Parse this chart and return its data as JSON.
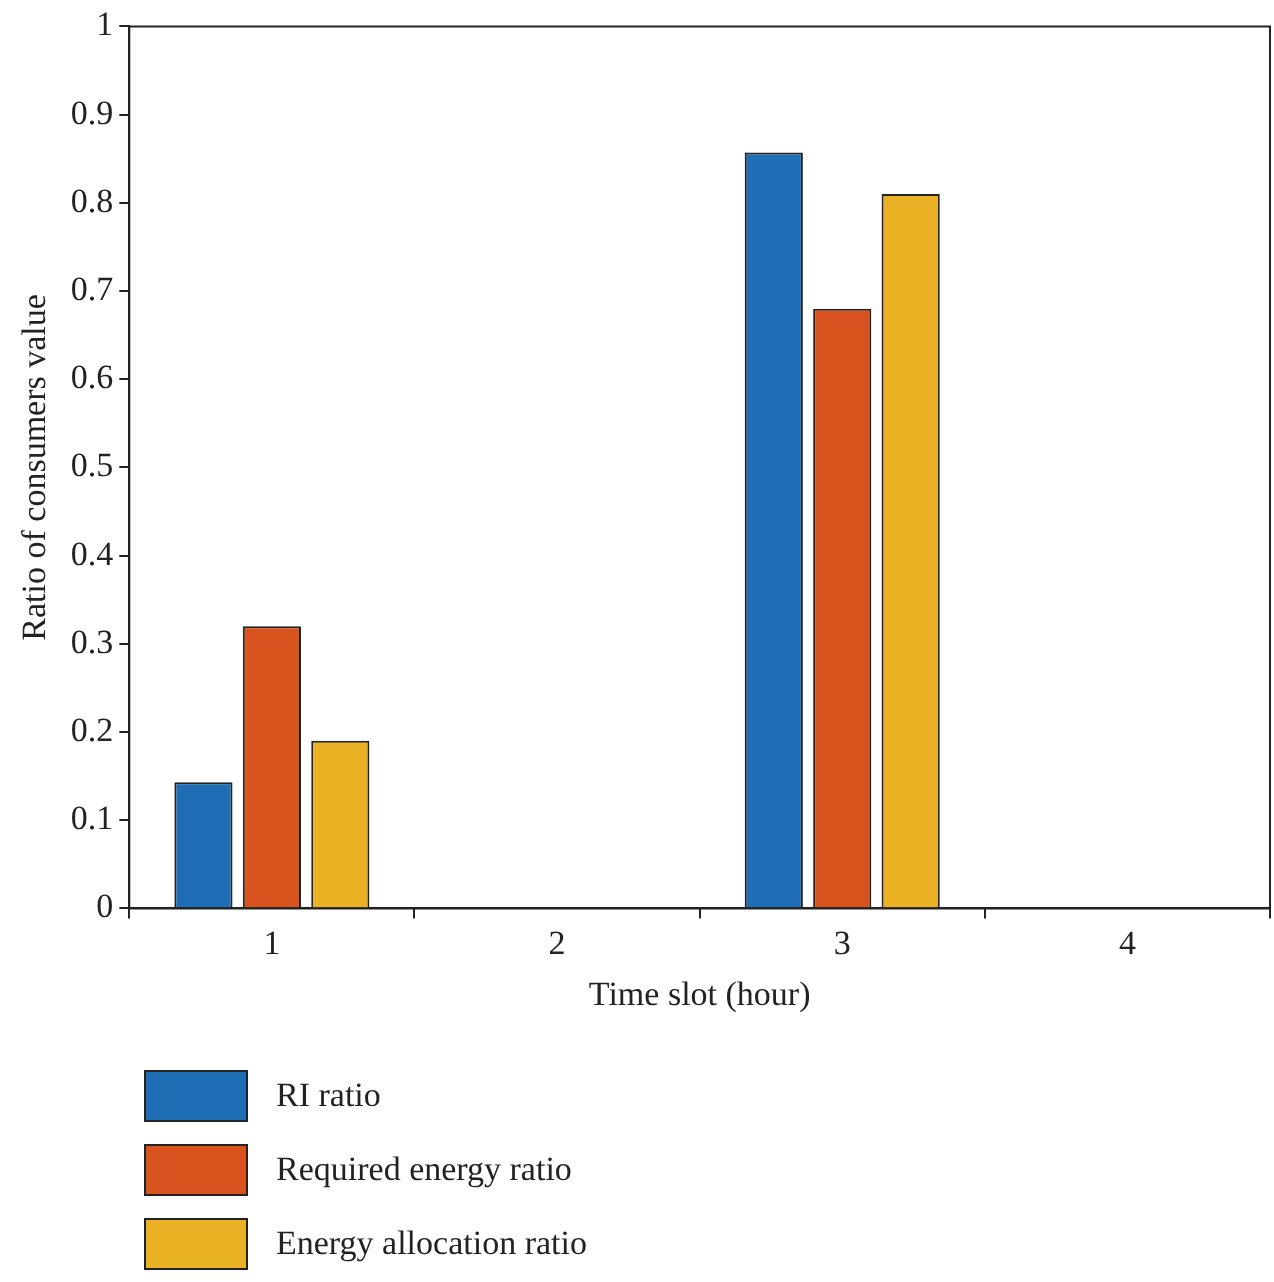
{
  "chart_data": {
    "type": "bar",
    "xlabel": "Time slot (hour)",
    "ylabel": "Ratio of consumers value",
    "categories": [
      "1",
      "2",
      "3",
      "4"
    ],
    "series": [
      {
        "name": "RI ratio",
        "color": "#1f6eb5",
        "values": [
          0.143,
          0,
          0.857,
          0
        ]
      },
      {
        "name": "Required energy ratio",
        "color": "#d9531e",
        "values": [
          0.32,
          0,
          0.68,
          0
        ]
      },
      {
        "name": "Energy allocation ratio",
        "color": "#ebb125",
        "values": [
          0.19,
          0,
          0.81,
          0
        ]
      }
    ],
    "ylim": [
      0,
      1
    ],
    "yticks": [
      0,
      0.1,
      0.2,
      0.3,
      0.4,
      0.5,
      0.6,
      0.7,
      0.8,
      0.9,
      1
    ],
    "grid": false,
    "legend": "bottom"
  }
}
